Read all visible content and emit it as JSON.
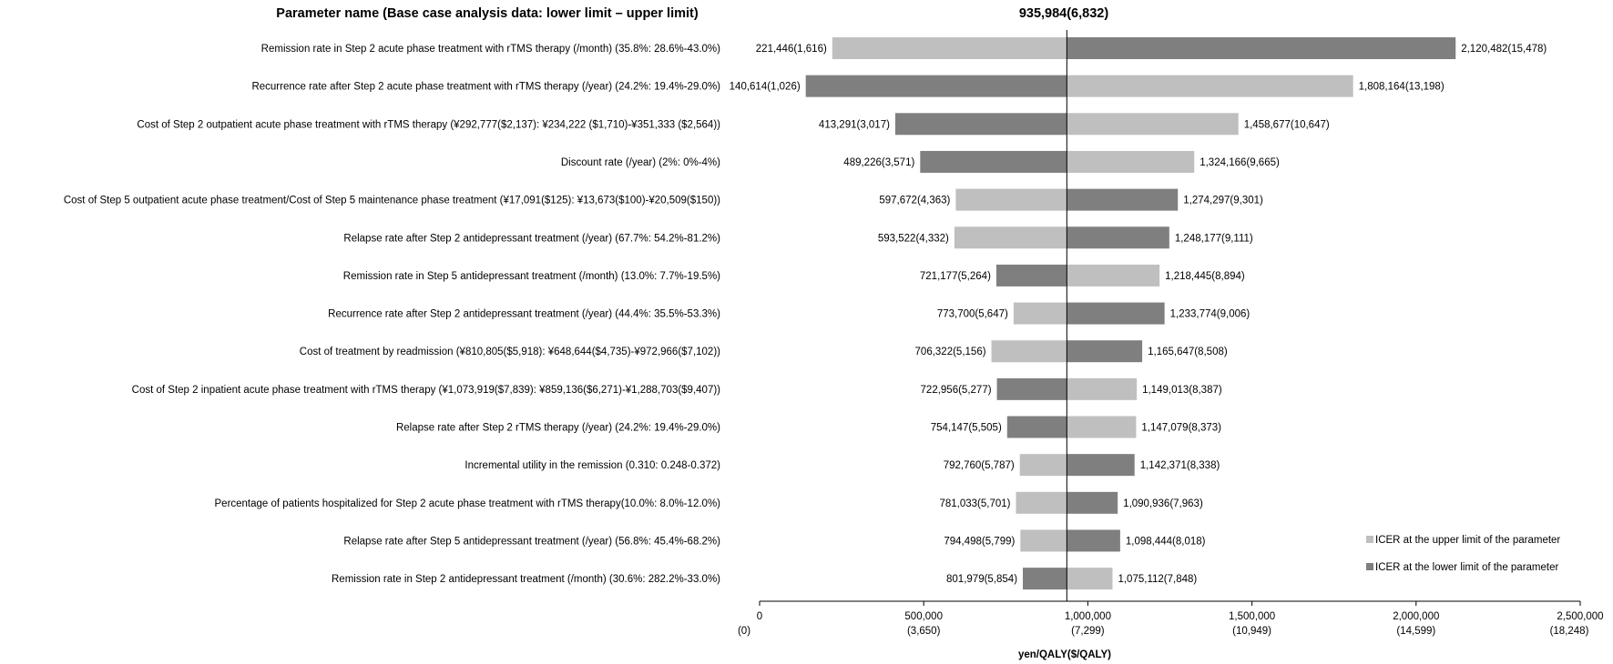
{
  "header": {
    "param_title": "Parameter name (Base case analysis data: lower limit – upper limit)",
    "base_value": "935,984(6,832)"
  },
  "colors": {
    "upper_limit": "#bfbfbf",
    "lower_limit": "#7f7f7f"
  },
  "chart_data": {
    "type": "bar",
    "orientation": "horizontal",
    "subtype": "tornado",
    "base_case": 935984,
    "xlim": [
      0,
      2500000
    ],
    "xlabel": "yen/QALY($/QALY)",
    "xticks": [
      {
        "value": 0,
        "label": "0",
        "sublabel": "(0)"
      },
      {
        "value": 500000,
        "label": "500,000",
        "sublabel": "(3,650)"
      },
      {
        "value": 1000000,
        "label": "1,000,000",
        "sublabel": "(7,299)"
      },
      {
        "value": 1500000,
        "label": "1,500,000",
        "sublabel": "(10,949)"
      },
      {
        "value": 2000000,
        "label": "2,000,000",
        "sublabel": "(14,599)"
      },
      {
        "value": 2500000,
        "label": "2,500,000",
        "sublabel": "(18,248)"
      }
    ],
    "legend": {
      "position": "bottom-right",
      "entries": [
        {
          "key": "upper",
          "label": "ICER at the upper limit of the parameter"
        },
        {
          "key": "lower",
          "label": "ICER at the lower limit of the parameter"
        }
      ]
    },
    "rows": [
      {
        "param": "Remission rate in Step 2 acute phase treatment with rTMS therapy (/month) (35.8%: 28.6%-43.0%)",
        "left": {
          "value": 221446,
          "label": "221,446(1,616)",
          "limit": "upper"
        },
        "right": {
          "value": 2120482,
          "label": "2,120,482(15,478)",
          "limit": "lower"
        }
      },
      {
        "param": "Recurrence rate after Step 2 acute phase treatment with rTMS therapy (/year) (24.2%: 19.4%-29.0%)",
        "left": {
          "value": 140614,
          "label": "140,614(1,026)",
          "limit": "lower"
        },
        "right": {
          "value": 1808164,
          "label": "1,808,164(13,198)",
          "limit": "upper"
        }
      },
      {
        "param": "Cost of Step 2 outpatient acute phase treatment with rTMS therapy (¥292,777($2,137): ¥234,222 ($1,710)-¥351,333 ($2,564))",
        "left": {
          "value": 413291,
          "label": "413,291(3,017)",
          "limit": "lower"
        },
        "right": {
          "value": 1458677,
          "label": "1,458,677(10,647)",
          "limit": "upper"
        }
      },
      {
        "param": "Discount rate (/year) (2%: 0%-4%)",
        "left": {
          "value": 489226,
          "label": "489,226(3,571)",
          "limit": "lower"
        },
        "right": {
          "value": 1324166,
          "label": "1,324,166(9,665)",
          "limit": "upper"
        }
      },
      {
        "param": "Cost of Step 5 outpatient acute phase treatment/Cost of Step 5 maintenance phase treatment (¥17,091($125): ¥13,673($100)-¥20,509($150))",
        "left": {
          "value": 597672,
          "label": "597,672(4,363)",
          "limit": "upper"
        },
        "right": {
          "value": 1274297,
          "label": "1,274,297(9,301)",
          "limit": "lower"
        }
      },
      {
        "param": "Relapse rate after Step 2 antidepressant treatment (/year) (67.7%: 54.2%-81.2%)",
        "left": {
          "value": 593522,
          "label": "593,522(4,332)",
          "limit": "upper"
        },
        "right": {
          "value": 1248177,
          "label": "1,248,177(9,111)",
          "limit": "lower"
        }
      },
      {
        "param": "Remission rate in Step 5 antidepressant treatment (/month) (13.0%: 7.7%-19.5%)",
        "left": {
          "value": 721177,
          "label": "721,177(5,264)",
          "limit": "lower"
        },
        "right": {
          "value": 1218445,
          "label": "1,218,445(8,894)",
          "limit": "upper"
        }
      },
      {
        "param": "Recurrence rate after Step 2 antidepressant treatment (/year) (44.4%: 35.5%-53.3%)",
        "left": {
          "value": 773700,
          "label": "773,700(5,647)",
          "limit": "upper"
        },
        "right": {
          "value": 1233774,
          "label": "1,233,774(9,006)",
          "limit": "lower"
        }
      },
      {
        "param": "Cost of treatment by readmission (¥810,805($5,918): ¥648,644($4,735)-¥972,966($7,102))",
        "left": {
          "value": 706322,
          "label": "706,322(5,156)",
          "limit": "upper"
        },
        "right": {
          "value": 1165647,
          "label": "1,165,647(8,508)",
          "limit": "lower"
        }
      },
      {
        "param": "Cost of Step 2 inpatient acute phase treatment with rTMS therapy (¥1,073,919($7,839): ¥859,136($6,271)-¥1,288,703($9,407))",
        "left": {
          "value": 722956,
          "label": "722,956(5,277)",
          "limit": "lower"
        },
        "right": {
          "value": 1149013,
          "label": "1,149,013(8,387)",
          "limit": "upper"
        }
      },
      {
        "param": "Relapse rate after Step 2 rTMS therapy (/year) (24.2%: 19.4%-29.0%)",
        "left": {
          "value": 754147,
          "label": "754,147(5,505)",
          "limit": "lower"
        },
        "right": {
          "value": 1147079,
          "label": "1,147,079(8,373)",
          "limit": "upper"
        }
      },
      {
        "param": "Incremental utility in the remission (0.310: 0.248-0.372)",
        "left": {
          "value": 792760,
          "label": "792,760(5,787)",
          "limit": "upper"
        },
        "right": {
          "value": 1142371,
          "label": "1,142,371(8,338)",
          "limit": "lower"
        }
      },
      {
        "param": "Percentage of patients hospitalized for Step 2 acute phase treatment with rTMS therapy(10.0%: 8.0%-12.0%)",
        "left": {
          "value": 781033,
          "label": "781,033(5,701)",
          "limit": "upper"
        },
        "right": {
          "value": 1090936,
          "label": "1,090,936(7,963)",
          "limit": "lower"
        }
      },
      {
        "param": "Relapse rate after Step 5 antidepressant treatment (/year) (56.8%: 45.4%-68.2%)",
        "left": {
          "value": 794498,
          "label": "794,498(5,799)",
          "limit": "upper"
        },
        "right": {
          "value": 1098444,
          "label": "1,098,444(8,018)",
          "limit": "lower"
        }
      },
      {
        "param": "Remission rate in Step 2 antidepressant treatment (/month) (30.6%: 282.2%-33.0%)",
        "left": {
          "value": 801979,
          "label": "801,979(5,854)",
          "limit": "lower"
        },
        "right": {
          "value": 1075112,
          "label": "1,075,112(7,848)",
          "limit": "upper"
        }
      }
    ]
  }
}
